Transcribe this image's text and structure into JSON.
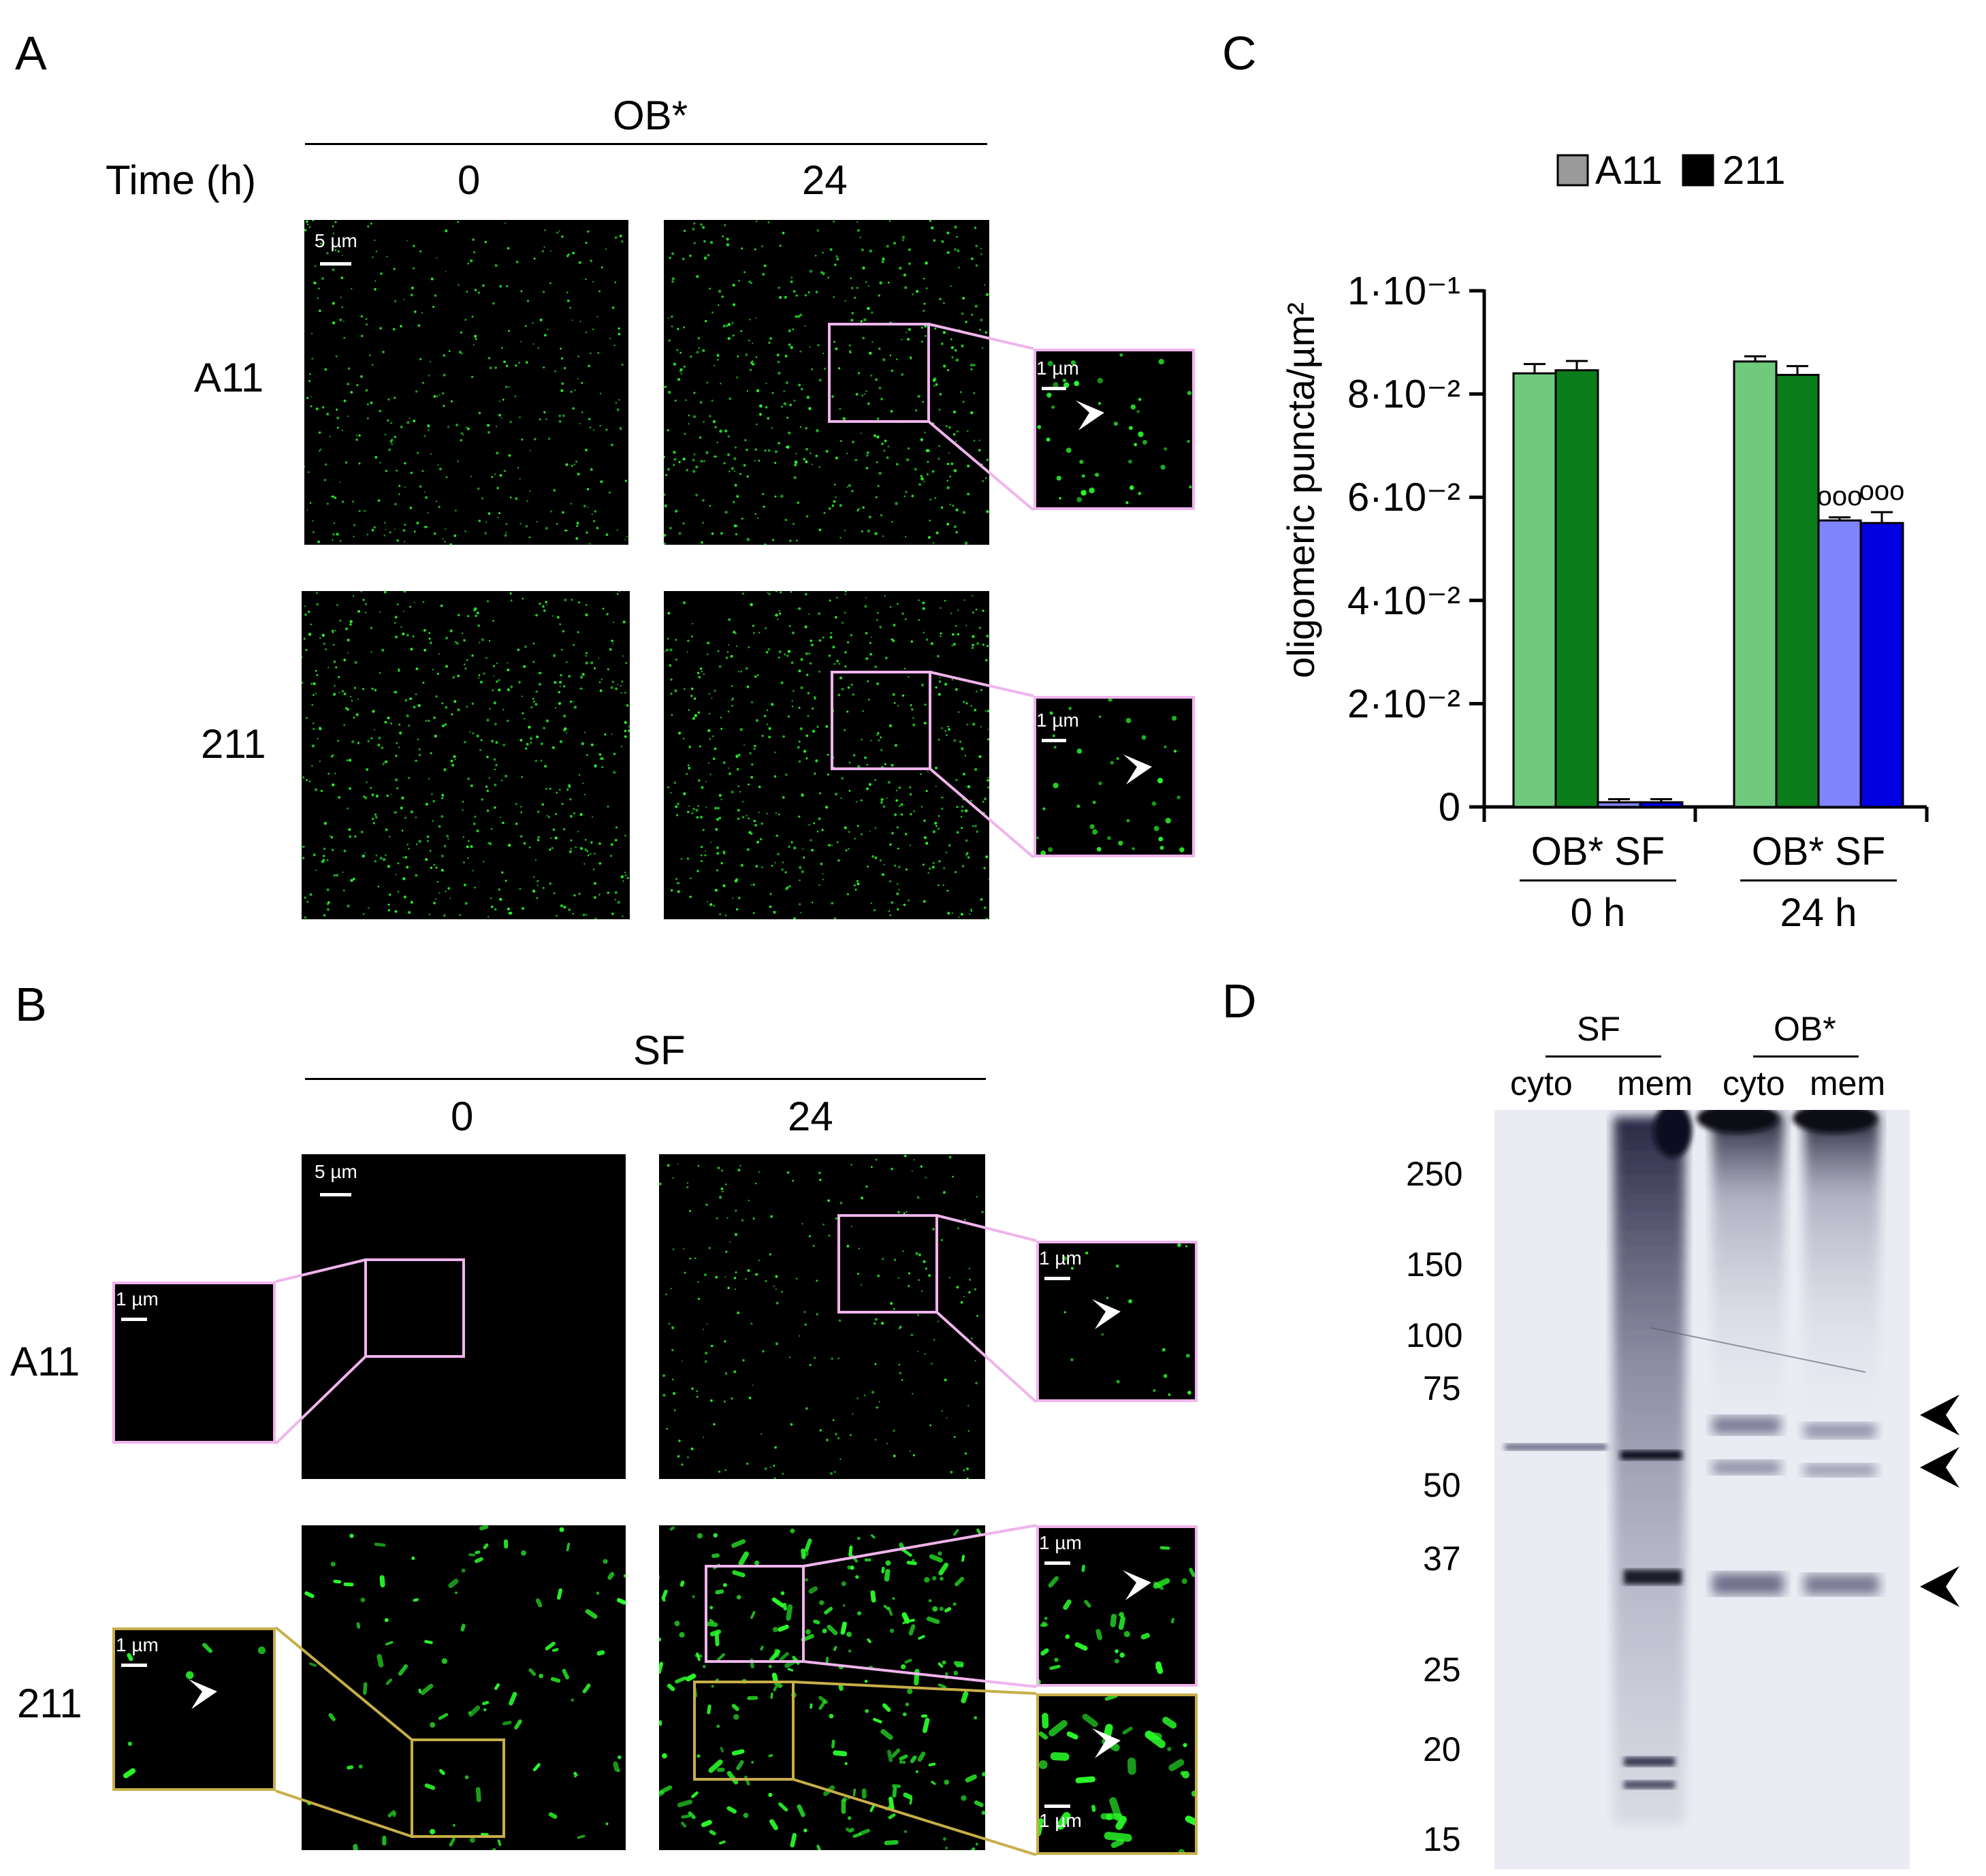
{
  "panels": {
    "A": "A",
    "B": "B",
    "C": "C",
    "D": "D"
  },
  "panel_a": {
    "condition": "OB*",
    "time_label": "Time (h)",
    "times": [
      "0",
      "24"
    ],
    "rows": [
      "A11",
      "211"
    ],
    "scale_main": "5 µm",
    "scale_inset": "1 µm"
  },
  "panel_b": {
    "condition": "SF",
    "times": [
      "0",
      "24"
    ],
    "rows": [
      "A11",
      "211"
    ],
    "scale_main": "5 µm",
    "scale_inset": "1 µm"
  },
  "colors": {
    "A11_fill": "#6fca7e",
    "A11_dark": "#0b7d1a",
    "211_light": "#7f85ff",
    "211_dark": "#0000e0",
    "inset_pink": "#f0b4ec",
    "inset_gold": "#c8ae48",
    "puncta": "#2aff2a"
  },
  "chart_data": {
    "type": "bar",
    "ylabel": "oligomeric puncta/µm²",
    "ylim": [
      0,
      0.1
    ],
    "yticks": [
      "0",
      "2·10⁻²",
      "4·10⁻²",
      "6·10⁻²",
      "8·10⁻²",
      "1·10⁻¹"
    ],
    "ytick_values": [
      0,
      0.02,
      0.04,
      0.06,
      0.08,
      0.1
    ],
    "legend": [
      "A11",
      "211"
    ],
    "legend_placement": "top",
    "groups": [
      {
        "time": "0 h",
        "conditions": [
          "OB*",
          "SF"
        ],
        "bars": [
          {
            "antibody": "A11",
            "condition": "OB*",
            "value": 0.084,
            "err": 0.0018
          },
          {
            "antibody": "A11",
            "condition": "OB*",
            "value": 0.0846,
            "err": 0.0018
          },
          {
            "antibody": "211",
            "condition": "SF",
            "value": 0.0009,
            "err": 0.0006
          },
          {
            "antibody": "211",
            "condition": "SF",
            "value": 0.0009,
            "err": 0.0006
          }
        ]
      },
      {
        "time": "24 h",
        "conditions": [
          "OB*",
          "SF"
        ],
        "bars": [
          {
            "antibody": "A11",
            "condition": "OB*",
            "value": 0.0863,
            "err": 0.001
          },
          {
            "antibody": "A11",
            "condition": "SF",
            "value": 0.0837,
            "err": 0.0017
          },
          {
            "antibody": "211",
            "condition": "OB*",
            "value": 0.0555,
            "err": 0.0006,
            "sig": "ooo"
          },
          {
            "antibody": "211",
            "condition": "SF",
            "value": 0.055,
            "err": 0.0021,
            "sig": "ooo"
          }
        ]
      }
    ]
  },
  "panel_d": {
    "lane_groups": [
      "SF",
      "OB*"
    ],
    "lanes": [
      "cyto",
      "mem",
      "cyto",
      "mem"
    ],
    "markers": [
      "250",
      "150",
      "100",
      "75",
      "50",
      "37",
      "25",
      "20",
      "15"
    ]
  }
}
